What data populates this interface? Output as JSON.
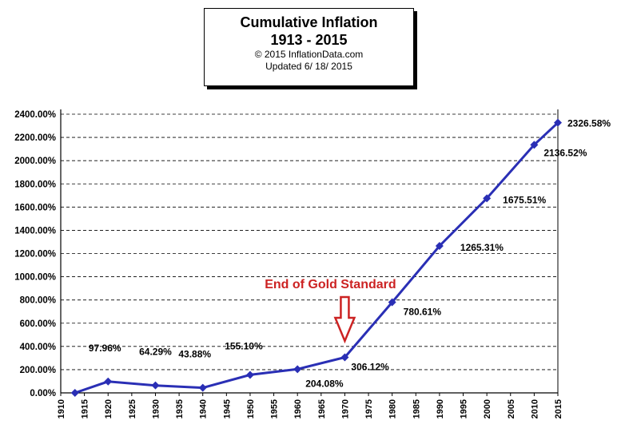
{
  "title_box": {
    "title": "Cumulative Inflation",
    "years": "1913 - 2015",
    "copyright": "© 2015 InflationData.com",
    "updated": "Updated  6/ 18/ 2015"
  },
  "annotation": {
    "text": "End of Gold Standard",
    "color": "#cc2222",
    "year": 1970
  },
  "colors": {
    "line": "#2a2fb5",
    "grid": "#000000",
    "annotation": "#cc2222"
  },
  "chart_data": {
    "type": "line",
    "title": "Cumulative Inflation",
    "subtitle": "1913 - 2015",
    "xlabel": "",
    "ylabel": "",
    "xlim": [
      1910,
      2015
    ],
    "ylim": [
      0,
      2400
    ],
    "x_ticks": [
      1910,
      1915,
      1920,
      1925,
      1930,
      1935,
      1940,
      1945,
      1950,
      1955,
      1960,
      1965,
      1970,
      1975,
      1980,
      1985,
      1990,
      1995,
      2000,
      2005,
      2010,
      2015
    ],
    "y_ticks": [
      "0.00%",
      "200.00%",
      "400.00%",
      "600.00%",
      "800.00%",
      "1000.00%",
      "1200.00%",
      "1400.00%",
      "1600.00%",
      "1800.00%",
      "2000.00%",
      "2200.00%",
      "2400.00%"
    ],
    "grid": "horizontal dashed",
    "series": [
      {
        "points": [
          {
            "x": 1913,
            "y": 0,
            "label": ""
          },
          {
            "x": 1920,
            "y": 97.96,
            "label": "97.96%"
          },
          {
            "x": 1930,
            "y": 64.29,
            "label": "64.29%"
          },
          {
            "x": 1940,
            "y": 43.88,
            "label": "43.88%"
          },
          {
            "x": 1950,
            "y": 155.1,
            "label": "155.10%"
          },
          {
            "x": 1960,
            "y": 204.08,
            "label": "204.08%"
          },
          {
            "x": 1970,
            "y": 306.12,
            "label": "306.12%"
          },
          {
            "x": 1980,
            "y": 780.61,
            "label": "780.61%"
          },
          {
            "x": 1990,
            "y": 1265.31,
            "label": "1265.31%"
          },
          {
            "x": 2000,
            "y": 1675.51,
            "label": "1675.51%"
          },
          {
            "x": 2010,
            "y": 2136.52,
            "label": "2136.52%"
          },
          {
            "x": 2015,
            "y": 2326.58,
            "label": "2326.58%"
          }
        ]
      }
    ]
  }
}
